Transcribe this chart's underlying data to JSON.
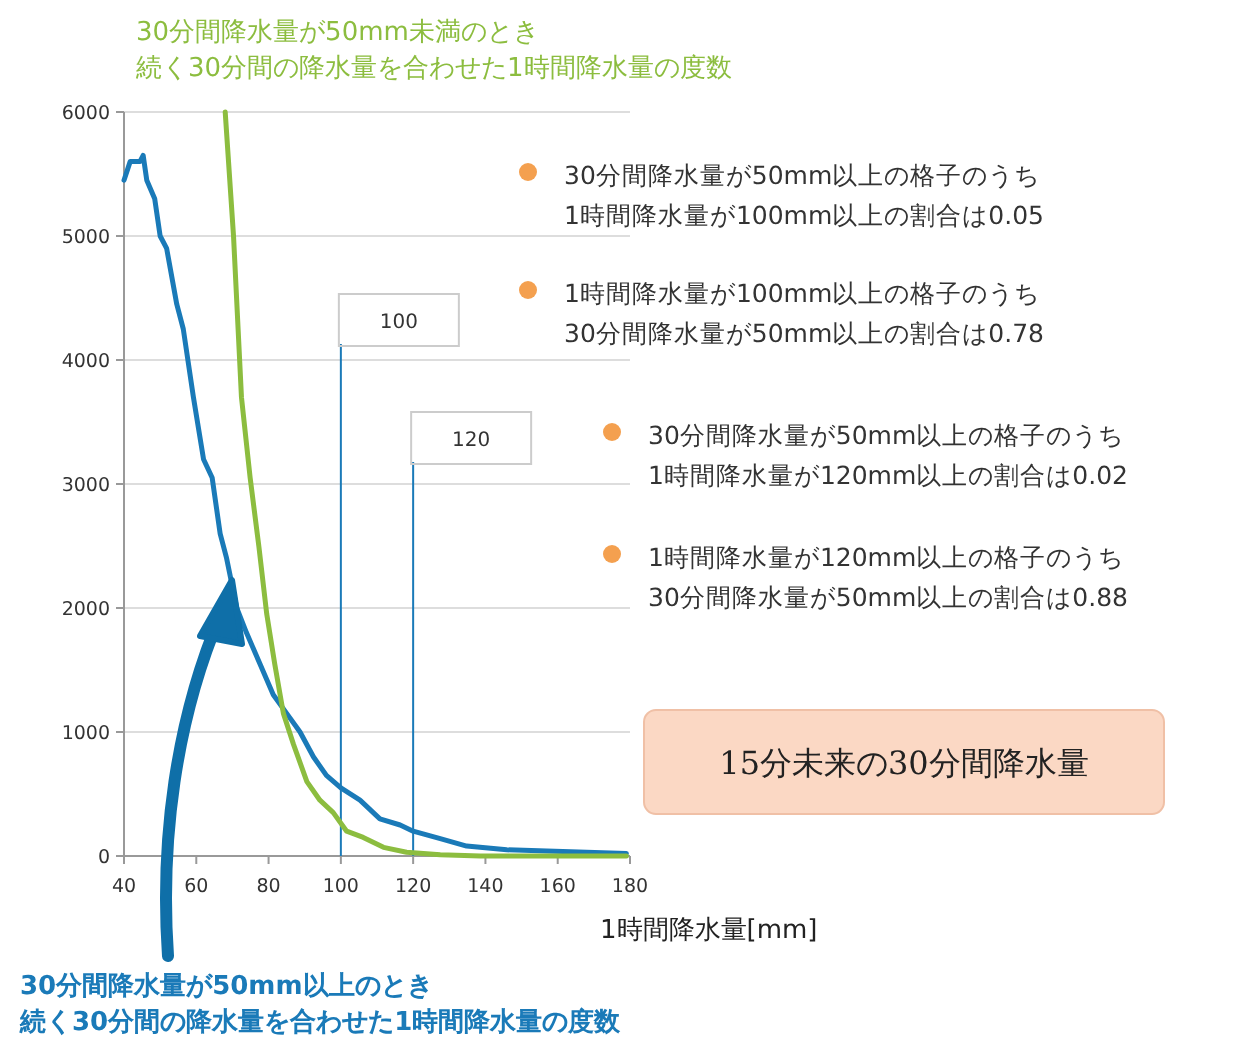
{
  "chart_data": {
    "type": "line",
    "xlabel": "1時間降水量[mm]",
    "xlim": [
      40,
      180
    ],
    "xticks": [
      40,
      60,
      80,
      100,
      120,
      140,
      160,
      180
    ],
    "ylim": [
      0,
      6000
    ],
    "yticks": [
      0,
      1000,
      2000,
      3000,
      4000,
      5000,
      6000
    ],
    "grid": "y",
    "series": [
      {
        "name": "30分間降水量が50mm以上のとき続く30分間の降水量を合わせた1時間降水量の度数",
        "color": "#1a7ab8",
        "x": [
          40,
          41.7,
          44.4,
          45.3,
          46.3,
          48.5,
          50,
          51.8,
          54.6,
          56.4,
          59.2,
          62,
          64.4,
          66.6,
          68.4,
          71.2,
          73.9,
          77.6,
          81.3,
          85,
          88.7,
          92.4,
          96,
          100,
          105.3,
          110.8,
          116.4,
          120,
          127.5,
          134.8,
          145.9,
          157,
          168,
          179
        ],
        "values": [
          5450,
          5600,
          5600,
          5650,
          5450,
          5300,
          5000,
          4900,
          4450,
          4250,
          3700,
          3200,
          3050,
          2600,
          2400,
          2000,
          1800,
          1550,
          1300,
          1150,
          1000,
          800,
          650,
          550,
          450,
          300,
          250,
          200,
          140,
          80,
          50,
          40,
          30,
          20
        ]
      },
      {
        "name": "30分間降水量が50mm未満のとき続く30分間の降水量を合わせた1時間降水量の度数",
        "color": "#8cbd3f",
        "x": [
          68,
          70.3,
          72.5,
          74.9,
          77.3,
          79.5,
          81.7,
          84.1,
          86.9,
          90.6,
          94.2,
          97.9,
          101.6,
          106.2,
          111.8,
          118.2,
          127.5,
          138.6,
          179
        ],
        "values": [
          6000,
          5000,
          3700,
          3050,
          2500,
          1950,
          1550,
          1150,
          900,
          600,
          450,
          350,
          200,
          150,
          70,
          30,
          10,
          0,
          0
        ]
      }
    ],
    "ref_lines": [
      {
        "axis": "x",
        "value": 100,
        "label": "100",
        "color": "#1a7ab8"
      },
      {
        "axis": "x",
        "value": 120,
        "label": "120",
        "color": "#1a7ab8"
      }
    ],
    "annotations": [
      "30分間降水量が50mm以上の格子のうち",
      "1時間降水量が100mm以上の割合は0.05",
      "1時間降水量が100mm以上の格子のうち",
      "30分間降水量が50mm以上の割合は0.78",
      "30分間降水量が50mm以上の格子のうち",
      "1時間降水量が120mm以上の割合は0.02",
      "1時間降水量が120mm以上の格子のうち",
      "30分間降水量が50mm以上の割合は0.88",
      "15分未来の30分間降水量"
    ]
  }
}
